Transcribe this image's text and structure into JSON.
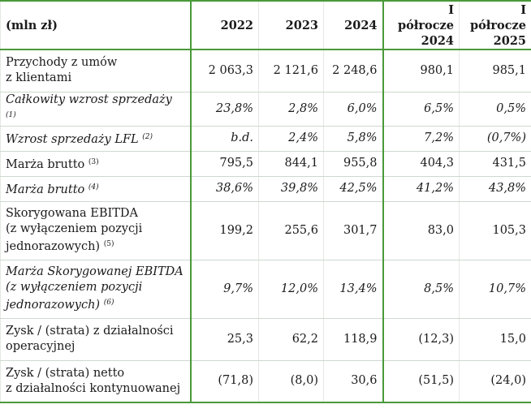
{
  "header": {
    "label": "(mln zł)",
    "cols": [
      "2022",
      "2023",
      "2024",
      "I półrocze 2024",
      "I półrocze 2025"
    ],
    "col_lines": [
      [
        "2022"
      ],
      [
        "2023"
      ],
      [
        "2024"
      ],
      [
        "I półrocze",
        "2024"
      ],
      [
        "I półrocze",
        "2025"
      ]
    ]
  },
  "rows": [
    {
      "label_lines": [
        "Przychody z umów",
        "z klientami"
      ],
      "note": "",
      "italic": false,
      "values": [
        "2 063,3",
        "2 121,6",
        "2 248,6",
        "980,1",
        "985,1"
      ]
    },
    {
      "label_lines": [
        "Całkowity wzrost sprzedaży"
      ],
      "note": "(1)",
      "italic": true,
      "values": [
        "23,8%",
        "2,8%",
        "6,0%",
        "6,5%",
        "0,5%"
      ]
    },
    {
      "label_lines": [
        "Wzrost sprzedaży LFL"
      ],
      "note": "(2)",
      "italic": true,
      "values": [
        "b.d.",
        "2,4%",
        "5,8%",
        "7,2%",
        "(0,7%)"
      ]
    },
    {
      "label_lines": [
        "Marża brutto"
      ],
      "note": "(3)",
      "italic": false,
      "values": [
        "795,5",
        "844,1",
        "955,8",
        "404,3",
        "431,5"
      ]
    },
    {
      "label_lines": [
        "Marża brutto"
      ],
      "note": "(4)",
      "italic": true,
      "values": [
        "38,6%",
        "39,8%",
        "42,5%",
        "41,2%",
        "43,8%"
      ]
    },
    {
      "label_lines": [
        "Skorygowana EBITDA",
        "(z wyłączeniem pozycji",
        "jednorazowych)"
      ],
      "note": "(5)",
      "italic": false,
      "values": [
        "199,2",
        "255,6",
        "301,7",
        "83,0",
        "105,3"
      ]
    },
    {
      "label_lines": [
        "Marża Skorygowanej EBITDA",
        "(z wyłączeniem pozycji",
        "jednorazowych)"
      ],
      "note": "(6)",
      "italic": true,
      "values": [
        "9,7%",
        "12,0%",
        "13,4%",
        "8,5%",
        "10,7%"
      ]
    },
    {
      "label_lines": [
        "Zysk / (strata) z działalności",
        "operacyjnej"
      ],
      "note": "",
      "italic": false,
      "values": [
        "25,3",
        "62,2",
        "118,9",
        "(12,3)",
        "15,0"
      ]
    },
    {
      "label_lines": [
        "Zysk / (strata) netto",
        "z działalności kontynuowanej"
      ],
      "note": "",
      "italic": false,
      "values": [
        "(71,8)",
        "(8,0)",
        "30,6",
        "(51,5)",
        "(24,0)"
      ]
    }
  ]
}
